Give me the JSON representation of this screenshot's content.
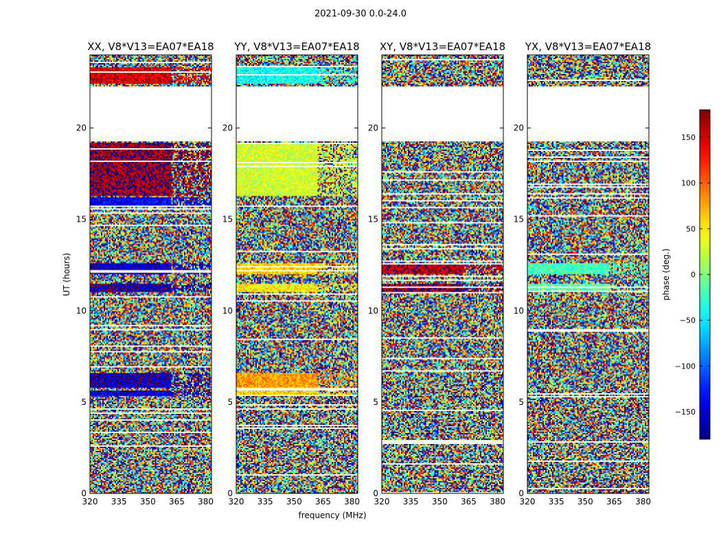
{
  "figure": {
    "suptitle": "2021-09-30 0.0-24.0",
    "xlabel": "frequency (MHz)",
    "ylabel": "UT (hours)",
    "colorbar_label": "phase (deg.)",
    "colormap": "jet",
    "colors": {
      "jet": [
        "#00007f",
        "#0000ff",
        "#007fff",
        "#00ffff",
        "#7fff7f",
        "#ffff00",
        "#ff7f00",
        "#ff0000",
        "#7f0000"
      ]
    }
  },
  "chart_data": [
    {
      "type": "heatmap",
      "title": "XX, V8*V13=EA07*EA18",
      "xlabel": "frequency (MHz)",
      "ylabel": "UT (hours)",
      "xlim": [
        320,
        383
      ],
      "ylim": [
        0,
        24
      ],
      "xticks": [
        320,
        335,
        350,
        365,
        380
      ],
      "yticks": [
        0,
        5,
        10,
        15,
        20
      ],
      "colorbar": {
        "label": "phase (deg.)",
        "range": [
          -180,
          180
        ],
        "ticks": [
          -150,
          -100,
          -50,
          0,
          50,
          100,
          150
        ]
      },
      "gaps_hours": [
        [
          19.3,
          22.3
        ]
      ],
      "coherent_bands": [
        {
          "ut": [
            22.4,
            23.3
          ],
          "phase_deg": 150
        },
        {
          "ut": [
            16.3,
            19.2
          ],
          "phase_deg": 170
        },
        {
          "ut": [
            15.7,
            16.2
          ],
          "phase_deg": -140
        },
        {
          "ut": [
            12.0,
            12.6
          ],
          "phase_deg": -155
        },
        {
          "ut": [
            11.0,
            11.5
          ],
          "phase_deg": -165
        },
        {
          "ut": [
            5.8,
            6.6
          ],
          "phase_deg": -160
        },
        {
          "ut": [
            5.3,
            5.6
          ],
          "phase_deg": -150
        }
      ]
    },
    {
      "type": "heatmap",
      "title": "YY, V8*V13=EA07*EA18",
      "xlabel": "frequency (MHz)",
      "ylabel": "UT (hours)",
      "xlim": [
        320,
        383
      ],
      "ylim": [
        0,
        24
      ],
      "xticks": [
        320,
        335,
        350,
        365,
        380
      ],
      "yticks": [
        0,
        5,
        10,
        15,
        20
      ],
      "colorbar": {
        "label": "phase (deg.)",
        "range": [
          -180,
          180
        ],
        "ticks": [
          -150,
          -100,
          -50,
          0,
          50,
          100,
          150
        ]
      },
      "gaps_hours": [
        [
          19.3,
          22.3
        ]
      ],
      "coherent_bands": [
        {
          "ut": [
            22.4,
            23.3
          ],
          "phase_deg": -40
        },
        {
          "ut": [
            16.3,
            19.2
          ],
          "phase_deg": 30
        },
        {
          "ut": [
            12.0,
            12.6
          ],
          "phase_deg": 60
        },
        {
          "ut": [
            11.0,
            11.5
          ],
          "phase_deg": 50
        },
        {
          "ut": [
            5.8,
            6.6
          ],
          "phase_deg": 80
        },
        {
          "ut": [
            5.3,
            5.6
          ],
          "phase_deg": 60
        }
      ]
    },
    {
      "type": "heatmap",
      "title": "XY, V8*V13=EA07*EA18",
      "xlabel": "frequency (MHz)",
      "ylabel": "UT (hours)",
      "xlim": [
        320,
        383
      ],
      "ylim": [
        0,
        24
      ],
      "xticks": [
        320,
        335,
        350,
        365,
        380
      ],
      "yticks": [
        0,
        5,
        10,
        15,
        20
      ],
      "colorbar": {
        "label": "phase (deg.)",
        "range": [
          -180,
          180
        ],
        "ticks": [
          -150,
          -100,
          -50,
          0,
          50,
          100,
          150
        ]
      },
      "gaps_hours": [
        [
          19.3,
          22.3
        ]
      ],
      "coherent_bands": [
        {
          "ut": [
            12.0,
            12.6
          ],
          "phase_deg": 160
        },
        {
          "ut": [
            11.0,
            11.5
          ],
          "phase_deg": 170
        }
      ]
    },
    {
      "type": "heatmap",
      "title": "YX, V8*V13=EA07*EA18",
      "xlabel": "frequency (MHz)",
      "ylabel": "UT (hours)",
      "xlim": [
        320,
        383
      ],
      "ylim": [
        0,
        24
      ],
      "xticks": [
        320,
        335,
        350,
        365,
        380
      ],
      "yticks": [
        0,
        5,
        10,
        15,
        20
      ],
      "colorbar": {
        "label": "phase (deg.)",
        "range": [
          -180,
          180
        ],
        "ticks": [
          -150,
          -100,
          -50,
          0,
          50,
          100,
          150
        ]
      },
      "gaps_hours": [
        [
          19.3,
          22.3
        ]
      ],
      "coherent_bands": [
        {
          "ut": [
            12.0,
            12.6
          ],
          "phase_deg": -20
        },
        {
          "ut": [
            11.0,
            11.5
          ],
          "phase_deg": -10
        }
      ]
    }
  ]
}
